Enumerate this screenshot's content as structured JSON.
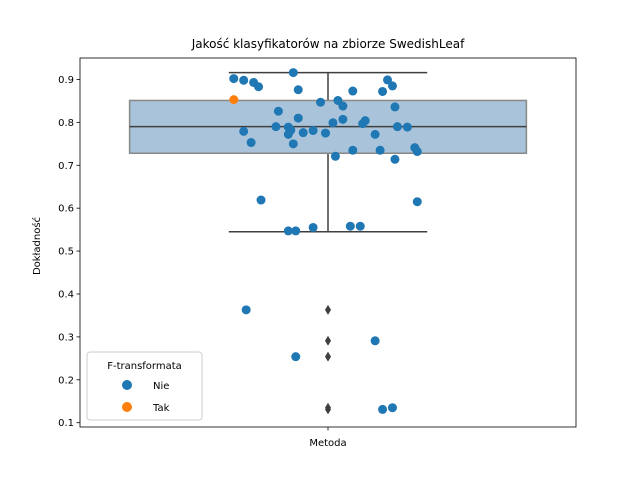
{
  "chart_data": {
    "type": "box",
    "title": "Jakość klasyfikatorów na zbiorze SwedishLeaf",
    "xlabel": "",
    "ylabel": "Dokładność",
    "categories": [
      "Metoda"
    ],
    "ylim": [
      0.09,
      0.95
    ],
    "yticks": [
      0.1,
      0.2,
      0.3,
      0.4,
      0.5,
      0.6,
      0.7,
      0.8,
      0.9
    ],
    "ytick_labels": [
      "0.1",
      "0.2",
      "0.3",
      "0.4",
      "0.5",
      "0.6",
      "0.7",
      "0.8",
      "0.9"
    ],
    "box": {
      "q1": 0.728,
      "median": 0.79,
      "q3": 0.851,
      "whisker_low": 0.545,
      "whisker_high": 0.916,
      "fliers": [
        0.363,
        0.291,
        0.254,
        0.135,
        0.131
      ],
      "color": "#a9c4da",
      "edge_color": "#888888"
    },
    "legend": {
      "title": "F-transformata",
      "position": "lower-left",
      "entries": [
        {
          "label": "Nie",
          "color": "#1f77b4"
        },
        {
          "label": "Tak",
          "color": "#ff7f0e"
        }
      ]
    },
    "series": [
      {
        "name": "Nie",
        "color": "#1f77b4",
        "points": [
          {
            "x": -0.38,
            "y": 0.902
          },
          {
            "x": -0.34,
            "y": 0.898
          },
          {
            "x": -0.3,
            "y": 0.893
          },
          {
            "x": -0.28,
            "y": 0.883
          },
          {
            "x": -0.14,
            "y": 0.916
          },
          {
            "x": 0.22,
            "y": 0.872
          },
          {
            "x": 0.24,
            "y": 0.899
          },
          {
            "x": 0.26,
            "y": 0.885
          },
          {
            "x": -0.12,
            "y": 0.876
          },
          {
            "x": 0.1,
            "y": 0.873
          },
          {
            "x": -0.03,
            "y": 0.847
          },
          {
            "x": 0.04,
            "y": 0.851
          },
          {
            "x": 0.27,
            "y": 0.836
          },
          {
            "x": 0.06,
            "y": 0.838
          },
          {
            "x": -0.2,
            "y": 0.826
          },
          {
            "x": -0.12,
            "y": 0.81
          },
          {
            "x": 0.06,
            "y": 0.807
          },
          {
            "x": 0.15,
            "y": 0.804
          },
          {
            "x": 0.14,
            "y": 0.797
          },
          {
            "x": 0.02,
            "y": 0.799
          },
          {
            "x": -0.21,
            "y": 0.79
          },
          {
            "x": -0.16,
            "y": 0.789
          },
          {
            "x": 0.28,
            "y": 0.79
          },
          {
            "x": 0.32,
            "y": 0.789
          },
          {
            "x": -0.34,
            "y": 0.779
          },
          {
            "x": -0.15,
            "y": 0.782
          },
          {
            "x": -0.1,
            "y": 0.776
          },
          {
            "x": -0.06,
            "y": 0.781
          },
          {
            "x": -0.01,
            "y": 0.775
          },
          {
            "x": -0.16,
            "y": 0.772
          },
          {
            "x": 0.19,
            "y": 0.772
          },
          {
            "x": -0.31,
            "y": 0.753
          },
          {
            "x": -0.14,
            "y": 0.75
          },
          {
            "x": 0.35,
            "y": 0.741
          },
          {
            "x": 0.36,
            "y": 0.732
          },
          {
            "x": 0.1,
            "y": 0.735
          },
          {
            "x": 0.21,
            "y": 0.735
          },
          {
            "x": 0.03,
            "y": 0.721
          },
          {
            "x": 0.27,
            "y": 0.714
          },
          {
            "x": -0.27,
            "y": 0.619
          },
          {
            "x": 0.36,
            "y": 0.615
          },
          {
            "x": -0.06,
            "y": 0.555
          },
          {
            "x": 0.09,
            "y": 0.558
          },
          {
            "x": 0.13,
            "y": 0.558
          },
          {
            "x": -0.16,
            "y": 0.547
          },
          {
            "x": -0.13,
            "y": 0.547
          },
          {
            "x": -0.33,
            "y": 0.363
          },
          {
            "x": 0.19,
            "y": 0.291
          },
          {
            "x": -0.13,
            "y": 0.254
          },
          {
            "x": 0.26,
            "y": 0.135
          },
          {
            "x": 0.22,
            "y": 0.131
          }
        ]
      },
      {
        "name": "Tak",
        "color": "#ff7f0e",
        "points": [
          {
            "x": -0.38,
            "y": 0.853
          }
        ]
      }
    ]
  }
}
